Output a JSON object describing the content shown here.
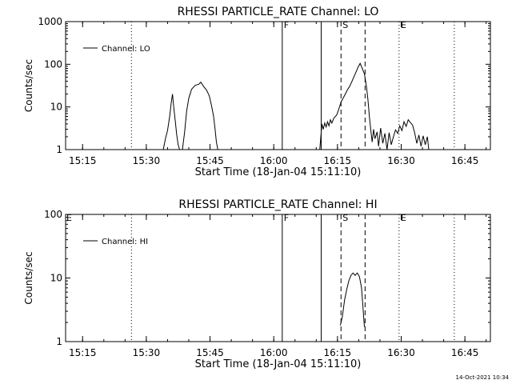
{
  "footer": {
    "timestamp": "14-Oct-2021 10:34"
  },
  "colors": {
    "foreground": "#000000",
    "background": "#ffffff"
  },
  "chart_data": [
    {
      "type": "line",
      "title": "RHESSI PARTICLE_RATE Channel: LO",
      "xlabel": "Start Time (18-Jan-04 15:11:10)",
      "ylabel": "Counts/sec",
      "x_unit": "minutes of day",
      "xlim": [
        "15:11",
        "16:51"
      ],
      "ylim": [
        1,
        1000
      ],
      "yscale": "log",
      "xticks": [
        "15:15",
        "15:30",
        "15:45",
        "16:00",
        "16:15",
        "16:30",
        "16:45"
      ],
      "yticks": [
        "1",
        "10",
        "100",
        "1000"
      ],
      "legend": {
        "position": "top-left",
        "entries": [
          "Channel: LO"
        ]
      },
      "series": [
        {
          "name": "Channel: LO",
          "points": [
            [
              "15:34:00",
              1
            ],
            [
              "15:34:30",
              1.8
            ],
            [
              "15:35:00",
              2.8
            ],
            [
              "15:35:30",
              6.0
            ],
            [
              "15:35:50",
              12
            ],
            [
              "15:36:10",
              20
            ],
            [
              "15:36:30",
              9
            ],
            [
              "15:36:50",
              4.5
            ],
            [
              "15:37:10",
              2.2
            ],
            [
              "15:37:30",
              1.3
            ],
            [
              "15:37:50",
              1
            ],
            [
              "15:38:30",
              1
            ],
            [
              "15:39:00",
              2.5
            ],
            [
              "15:39:30",
              8
            ],
            [
              "15:40:00",
              16
            ],
            [
              "15:40:40",
              26
            ],
            [
              "15:41:30",
              32
            ],
            [
              "15:42:20",
              34
            ],
            [
              "15:42:50",
              38
            ],
            [
              "15:43:30",
              30
            ],
            [
              "15:44:10",
              25
            ],
            [
              "15:44:50",
              18
            ],
            [
              "15:45:20",
              11
            ],
            [
              "15:45:50",
              6
            ],
            [
              "15:46:10",
              3.2
            ],
            [
              "15:46:30",
              1.5
            ],
            [
              "15:46:50",
              1
            ],
            [
              "16:10:50",
              1
            ],
            [
              "16:11:20",
              4
            ],
            [
              "16:11:40",
              3
            ],
            [
              "16:12:00",
              4.2
            ],
            [
              "16:12:20",
              3.4
            ],
            [
              "16:12:40",
              4.5
            ],
            [
              "16:13:00",
              3.6
            ],
            [
              "16:13:20",
              5
            ],
            [
              "16:13:40",
              4.2
            ],
            [
              "16:14:10",
              5.5
            ],
            [
              "16:14:50",
              6.5
            ],
            [
              "16:15:20",
              9
            ],
            [
              "16:15:50",
              13
            ],
            [
              "16:16:20",
              16
            ],
            [
              "16:16:50",
              20
            ],
            [
              "16:17:20",
              25
            ],
            [
              "16:17:50",
              30
            ],
            [
              "16:18:20",
              38
            ],
            [
              "16:18:50",
              50
            ],
            [
              "16:19:20",
              65
            ],
            [
              "16:19:50",
              85
            ],
            [
              "16:20:20",
              105
            ],
            [
              "16:20:50",
              80
            ],
            [
              "16:21:20",
              60
            ],
            [
              "16:21:50",
              30
            ],
            [
              "16:22:10",
              15
            ],
            [
              "16:22:30",
              6
            ],
            [
              "16:22:50",
              3
            ],
            [
              "16:23:10",
              1.5
            ],
            [
              "16:23:30",
              3
            ],
            [
              "16:23:50",
              1.8
            ],
            [
              "16:24:20",
              2.6
            ],
            [
              "16:24:40",
              1.2
            ],
            [
              "16:25:10",
              3.2
            ],
            [
              "16:25:40",
              1.4
            ],
            [
              "16:26:10",
              2.4
            ],
            [
              "16:26:40",
              1
            ],
            [
              "16:27:10",
              2.5
            ],
            [
              "16:27:40",
              1.3
            ],
            [
              "16:28:10",
              2
            ],
            [
              "16:28:40",
              2.9
            ],
            [
              "16:29:10",
              2.4
            ],
            [
              "16:29:40",
              3.6
            ],
            [
              "16:30:10",
              2.8
            ],
            [
              "16:30:40",
              4.5
            ],
            [
              "16:31:10",
              3.5
            ],
            [
              "16:31:40",
              5
            ],
            [
              "16:32:10",
              4.3
            ],
            [
              "16:32:40",
              3.8
            ],
            [
              "16:33:10",
              2.5
            ],
            [
              "16:33:40",
              1.4
            ],
            [
              "16:34:10",
              2.2
            ],
            [
              "16:34:40",
              1.2
            ],
            [
              "16:35:10",
              2.1
            ],
            [
              "16:35:40",
              1.3
            ],
            [
              "16:36:10",
              2.0
            ],
            [
              "16:36:30",
              1
            ]
          ]
        }
      ],
      "markers": [
        {
          "time": "15:26:30",
          "style": "dotted",
          "label": ""
        },
        {
          "time": "16:02:00",
          "style": "solid",
          "label": "F"
        },
        {
          "time": "16:11:10",
          "style": "solid",
          "label": ""
        },
        {
          "time": "16:15:50",
          "style": "dashed",
          "label": "S"
        },
        {
          "time": "16:21:30",
          "style": "dashed",
          "label": ""
        },
        {
          "time": "16:29:30",
          "style": "dotted",
          "label": "E"
        },
        {
          "time": "16:42:30",
          "style": "dotted",
          "label": ""
        }
      ],
      "edge_label": ""
    },
    {
      "type": "line",
      "title": "RHESSI PARTICLE_RATE Channel: HI",
      "xlabel": "Start Time (18-Jan-04 15:11:10)",
      "ylabel": "Counts/sec",
      "x_unit": "minutes of day",
      "xlim": [
        "15:11",
        "16:51"
      ],
      "ylim": [
        1,
        100
      ],
      "yscale": "log",
      "xticks": [
        "15:15",
        "15:30",
        "15:45",
        "16:00",
        "16:15",
        "16:30",
        "16:45"
      ],
      "yticks": [
        "1",
        "10",
        "100"
      ],
      "legend": {
        "position": "top-left",
        "entries": [
          "Channel: HI"
        ]
      },
      "series": [
        {
          "name": "Channel: HI",
          "points": [
            [
              "16:15:40",
              1.8
            ],
            [
              "16:16:10",
              2.5
            ],
            [
              "16:16:40",
              4.5
            ],
            [
              "16:17:10",
              6.5
            ],
            [
              "16:17:40",
              9
            ],
            [
              "16:18:10",
              11
            ],
            [
              "16:18:40",
              12
            ],
            [
              "16:19:10",
              11
            ],
            [
              "16:19:40",
              12
            ],
            [
              "16:20:10",
              10.5
            ],
            [
              "16:20:40",
              7
            ],
            [
              "16:21:00",
              3.5
            ],
            [
              "16:21:20",
              1.7
            ]
          ]
        }
      ],
      "markers": [
        {
          "time": "15:26:30",
          "style": "dotted",
          "label": ""
        },
        {
          "time": "16:02:00",
          "style": "solid",
          "label": "F"
        },
        {
          "time": "16:11:10",
          "style": "solid",
          "label": ""
        },
        {
          "time": "16:15:50",
          "style": "dashed",
          "label": "S"
        },
        {
          "time": "16:21:30",
          "style": "dashed",
          "label": ""
        },
        {
          "time": "16:29:30",
          "style": "dotted",
          "label": "E"
        },
        {
          "time": "16:42:30",
          "style": "dotted",
          "label": ""
        }
      ],
      "edge_label": "E"
    }
  ]
}
